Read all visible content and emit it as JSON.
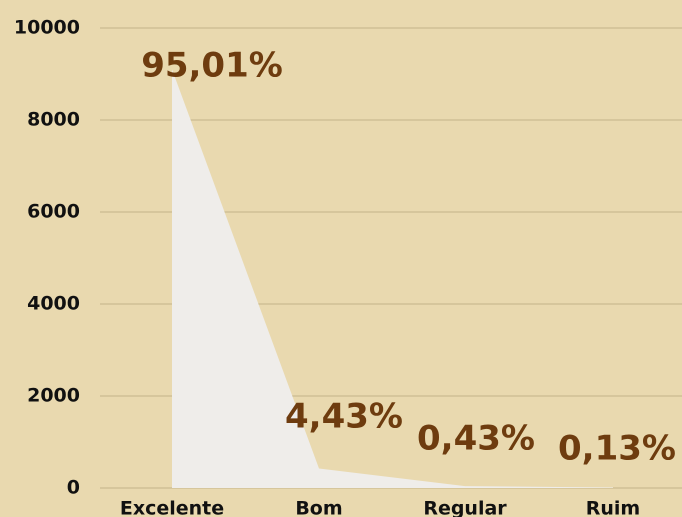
{
  "chart_data": {
    "type": "area",
    "categories": [
      "Excelente",
      "Bom",
      "Regular",
      "Ruim"
    ],
    "values": [
      9100,
      425,
      41,
      12
    ],
    "annotations": [
      "95,01%",
      "4,43%",
      "0,43%",
      "0,13%"
    ],
    "color": "#efedea",
    "ylim": [
      0,
      10000
    ],
    "yticks": [
      0,
      2000,
      4000,
      6000,
      8000,
      10000
    ],
    "grid": true
  }
}
